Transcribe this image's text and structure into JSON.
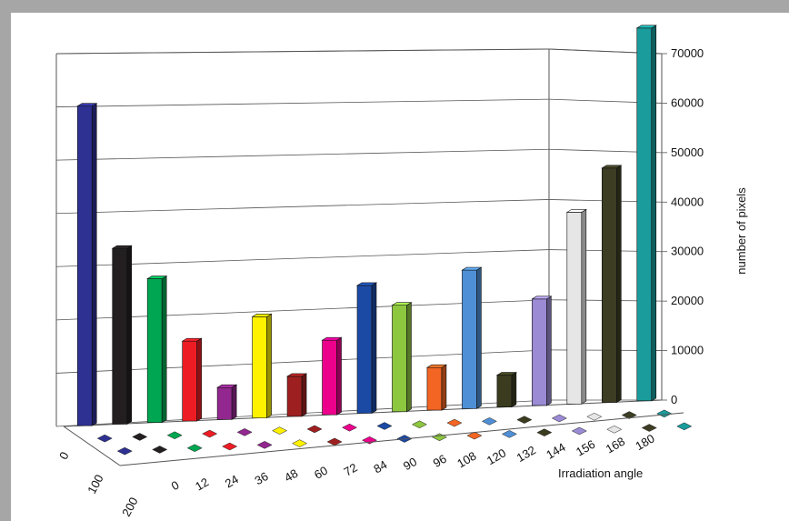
{
  "chart_data": {
    "type": "bar",
    "title": "",
    "xlabel": "Irradiation angle",
    "ylabel": "number of pixels",
    "ylim": [
      0,
      70000
    ],
    "y_ticks": [
      "0",
      "10000",
      "20000",
      "30000",
      "40000",
      "50000",
      "60000",
      "70000"
    ],
    "categories": [
      "0",
      "12",
      "24",
      "36",
      "48",
      "60",
      "72",
      "84",
      "90",
      "96",
      "108",
      "120",
      "132",
      "144",
      "156",
      "168",
      "180"
    ],
    "depth_categories": [
      "0",
      "100",
      "200"
    ],
    "series": [
      {
        "color": "#2e3192",
        "values": [
          60000,
          33000,
          27000,
          15000,
          6000,
          19000,
          7500,
          14000,
          24000,
          20000,
          8000,
          26000,
          6000,
          20000,
          36000,
          44000,
          70000
        ]
      }
    ],
    "bar_colors": [
      "#2e3192",
      "#231f20",
      "#00a651",
      "#ed1c24",
      "#92278f",
      "#fff200",
      "#9e1f1f",
      "#ec008c",
      "#1b4aa5",
      "#8dc63f",
      "#f26522",
      "#4f8fd6",
      "#3b3b1f",
      "#9b8ad4",
      "#e6e6e6",
      "#3d3d24",
      "#1a9c9c"
    ]
  }
}
